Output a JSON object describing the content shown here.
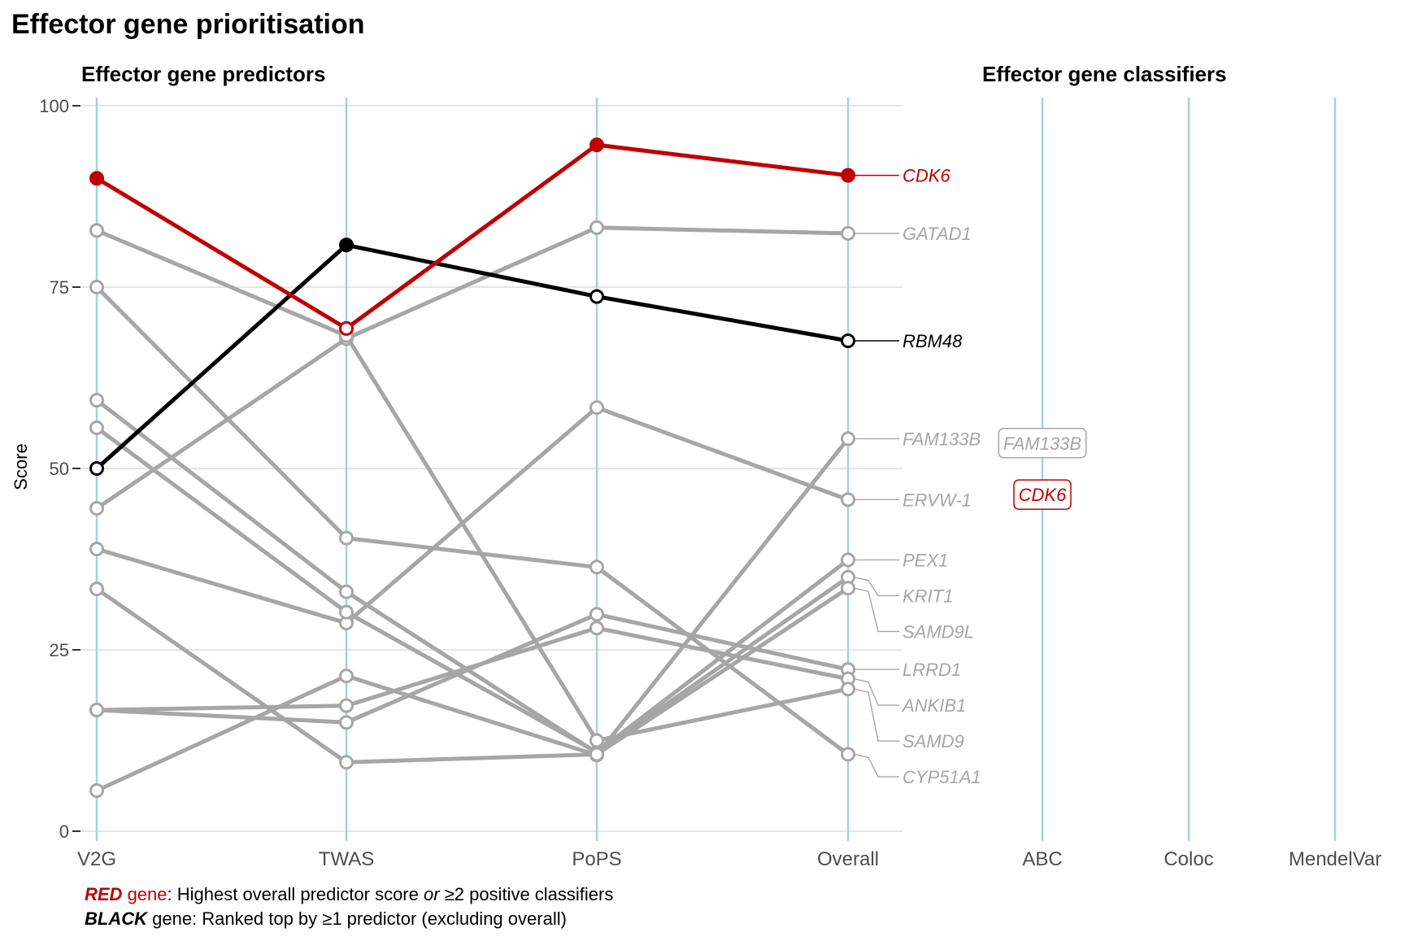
{
  "title": "Effector gene prioritisation",
  "colors": {
    "red": "#c00000",
    "black": "#000000",
    "grey": "#a6a6a6",
    "axis_line": "#a3d2df",
    "grid": "#e5e5e5"
  },
  "chart_data": [
    {
      "type": "line",
      "title": "Effector gene predictors",
      "xlabel": "",
      "ylabel": "Score",
      "categories": [
        "V2G",
        "TWAS",
        "PoPS",
        "Overall"
      ],
      "ylim": [
        0,
        100
      ],
      "yticks": [
        0,
        25,
        50,
        75,
        100
      ],
      "grid": "horizontal",
      "series": [
        {
          "name": "CDK6",
          "highlight": "red",
          "values": [
            90,
            69.3,
            94.6,
            90.4
          ]
        },
        {
          "name": "GATAD1",
          "highlight": "grey",
          "values": [
            44.5,
            67.9,
            83.2,
            82.4
          ]
        },
        {
          "name": "RBM48",
          "highlight": "black",
          "values": [
            50,
            80.8,
            73.7,
            67.6
          ]
        },
        {
          "name": "FAM133B",
          "highlight": "grey",
          "values": [
            5.6,
            21.4,
            10.5,
            54.1
          ]
        },
        {
          "name": "ERVW-1",
          "highlight": "grey",
          "values": [
            38.9,
            28.7,
            58.4,
            45.7
          ]
        },
        {
          "name": "PEX1",
          "highlight": "grey",
          "values": [
            55.6,
            30.2,
            10.9,
            37.4
          ]
        },
        {
          "name": "KRIT1",
          "highlight": "grey",
          "values": [
            59.4,
            33,
            10.8,
            35
          ]
        },
        {
          "name": "SAMD9L",
          "highlight": "grey",
          "values": [
            33.4,
            9.5,
            10.6,
            33.5
          ]
        },
        {
          "name": "LRRD1",
          "highlight": "grey",
          "values": [
            16.7,
            15,
            29.9,
            22.3
          ]
        },
        {
          "name": "ANKIB1",
          "highlight": "grey",
          "values": [
            16.7,
            17.3,
            28,
            21
          ]
        },
        {
          "name": "SAMD9",
          "highlight": "grey",
          "values": [
            82.8,
            68.3,
            12.5,
            19.6
          ]
        },
        {
          "name": "CYP51A1",
          "highlight": "grey",
          "values": [
            75,
            40.4,
            36.4,
            10.6
          ]
        }
      ]
    },
    {
      "type": "table",
      "title": "Effector gene classifiers",
      "categories": [
        "ABC",
        "Coloc",
        "MendelVar"
      ],
      "labels": [
        {
          "gene": "FAM133B",
          "classifier": "ABC",
          "y": 53.5,
          "highlight": "grey"
        },
        {
          "gene": "CDK6",
          "classifier": "ABC",
          "y": 46.4,
          "highlight": "red"
        }
      ]
    }
  ],
  "legend": {
    "line1": {
      "strong": "RED",
      "colored": " gene",
      "rest_a": ": Highest overall predictor score ",
      "em": "or",
      "rest_b": " ≥2 positive classifiers"
    },
    "line2": {
      "strong": "BLACK",
      "rest": " gene: Ranked top by ≥1 predictor (excluding overall)"
    }
  }
}
